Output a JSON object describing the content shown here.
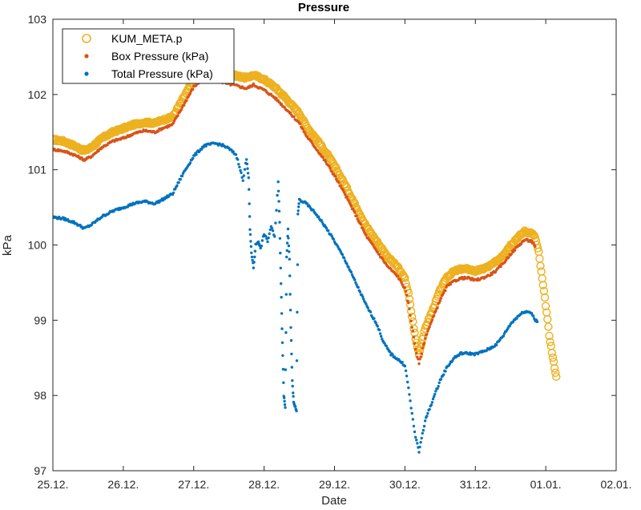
{
  "chart_data": {
    "type": "scatter",
    "title": "Pressure",
    "xlabel": "Date",
    "ylabel": "kPa",
    "x_tick_labels": [
      "25.12.",
      "26.12.",
      "27.12.",
      "28.12.",
      "29.12.",
      "30.12.",
      "31.12.",
      "01.01.",
      "02.01."
    ],
    "y_tick_labels": [
      "97",
      "98",
      "99",
      "100",
      "101",
      "102",
      "103"
    ],
    "x_unit": "days since 25.12.",
    "xlim": [
      0,
      8
    ],
    "ylim": [
      97,
      103
    ],
    "legend": {
      "position": "top-left",
      "boxed": true
    },
    "series": [
      {
        "name": "KUM_META.p",
        "marker": "open-circle",
        "color": "#EDB120",
        "points": [
          [
            0.0,
            101.4
          ],
          [
            0.15,
            101.38
          ],
          [
            0.3,
            101.32
          ],
          [
            0.45,
            101.25
          ],
          [
            0.55,
            101.3
          ],
          [
            0.7,
            101.42
          ],
          [
            0.85,
            101.5
          ],
          [
            1.0,
            101.55
          ],
          [
            1.15,
            101.6
          ],
          [
            1.3,
            101.63
          ],
          [
            1.45,
            101.62
          ],
          [
            1.55,
            101.66
          ],
          [
            1.7,
            101.7
          ],
          [
            1.85,
            101.95
          ],
          [
            2.0,
            102.2
          ],
          [
            2.15,
            102.35
          ],
          [
            2.3,
            102.32
          ],
          [
            2.45,
            102.28
          ],
          [
            2.6,
            102.25
          ],
          [
            2.75,
            102.22
          ],
          [
            2.85,
            102.26
          ],
          [
            3.0,
            102.2
          ],
          [
            3.15,
            102.1
          ],
          [
            3.3,
            101.96
          ],
          [
            3.4,
            101.85
          ],
          [
            3.5,
            101.75
          ],
          [
            3.6,
            101.58
          ],
          [
            3.75,
            101.4
          ],
          [
            3.9,
            101.2
          ],
          [
            4.0,
            101.05
          ],
          [
            4.15,
            100.8
          ],
          [
            4.3,
            100.52
          ],
          [
            4.45,
            100.25
          ],
          [
            4.6,
            100.05
          ],
          [
            4.75,
            99.85
          ],
          [
            4.9,
            99.7
          ],
          [
            5.0,
            99.55
          ],
          [
            5.05,
            99.35
          ],
          [
            5.1,
            99.05
          ],
          [
            5.15,
            98.75
          ],
          [
            5.2,
            98.55
          ],
          [
            5.25,
            98.75
          ],
          [
            5.3,
            98.92
          ],
          [
            5.4,
            99.15
          ],
          [
            5.5,
            99.4
          ],
          [
            5.6,
            99.58
          ],
          [
            5.7,
            99.65
          ],
          [
            5.8,
            99.68
          ],
          [
            5.9,
            99.68
          ],
          [
            6.0,
            99.65
          ],
          [
            6.1,
            99.68
          ],
          [
            6.2,
            99.72
          ],
          [
            6.3,
            99.78
          ],
          [
            6.4,
            99.88
          ],
          [
            6.5,
            100.0
          ],
          [
            6.6,
            100.1
          ],
          [
            6.7,
            100.18
          ],
          [
            6.8,
            100.16
          ],
          [
            6.85,
            100.1
          ],
          [
            6.9,
            99.9
          ],
          [
            6.95,
            99.55
          ],
          [
            7.0,
            99.2
          ],
          [
            7.05,
            98.8
          ],
          [
            7.1,
            98.5
          ],
          [
            7.15,
            98.25
          ]
        ]
      },
      {
        "name": "Box Pressure (kPa)",
        "marker": "dot",
        "color": "#D95319",
        "points": [
          [
            0.0,
            101.27
          ],
          [
            0.15,
            101.25
          ],
          [
            0.3,
            101.2
          ],
          [
            0.45,
            101.13
          ],
          [
            0.55,
            101.18
          ],
          [
            0.7,
            101.3
          ],
          [
            0.85,
            101.38
          ],
          [
            1.0,
            101.42
          ],
          [
            1.15,
            101.48
          ],
          [
            1.3,
            101.52
          ],
          [
            1.45,
            101.5
          ],
          [
            1.55,
            101.55
          ],
          [
            1.7,
            101.6
          ],
          [
            1.85,
            101.85
          ],
          [
            2.0,
            102.1
          ],
          [
            2.15,
            102.22
          ],
          [
            2.3,
            102.2
          ],
          [
            2.45,
            102.15
          ],
          [
            2.6,
            102.12
          ],
          [
            2.75,
            102.08
          ],
          [
            2.85,
            102.13
          ],
          [
            3.0,
            102.06
          ],
          [
            3.15,
            101.96
          ],
          [
            3.3,
            101.82
          ],
          [
            3.4,
            101.72
          ],
          [
            3.5,
            101.62
          ],
          [
            3.6,
            101.45
          ],
          [
            3.75,
            101.27
          ],
          [
            3.9,
            101.07
          ],
          [
            4.0,
            100.92
          ],
          [
            4.15,
            100.67
          ],
          [
            4.3,
            100.4
          ],
          [
            4.45,
            100.12
          ],
          [
            4.6,
            99.92
          ],
          [
            4.75,
            99.72
          ],
          [
            4.9,
            99.58
          ],
          [
            5.0,
            99.42
          ],
          [
            5.05,
            99.22
          ],
          [
            5.1,
            98.92
          ],
          [
            5.15,
            98.62
          ],
          [
            5.2,
            98.42
          ],
          [
            5.25,
            98.62
          ],
          [
            5.3,
            98.8
          ],
          [
            5.4,
            99.03
          ],
          [
            5.5,
            99.27
          ],
          [
            5.6,
            99.45
          ],
          [
            5.7,
            99.52
          ],
          [
            5.8,
            99.56
          ],
          [
            5.9,
            99.56
          ],
          [
            6.0,
            99.53
          ],
          [
            6.1,
            99.56
          ],
          [
            6.2,
            99.6
          ],
          [
            6.3,
            99.66
          ],
          [
            6.4,
            99.76
          ],
          [
            6.5,
            99.88
          ],
          [
            6.6,
            99.98
          ],
          [
            6.7,
            100.07
          ],
          [
            6.8,
            100.05
          ],
          [
            6.85,
            99.98
          ]
        ]
      },
      {
        "name": "Total Pressure (kPa)",
        "marker": "dot",
        "color": "#0072BD",
        "points": [
          [
            0.0,
            100.37
          ],
          [
            0.15,
            100.35
          ],
          [
            0.3,
            100.3
          ],
          [
            0.45,
            100.22
          ],
          [
            0.55,
            100.27
          ],
          [
            0.7,
            100.38
          ],
          [
            0.85,
            100.45
          ],
          [
            1.0,
            100.5
          ],
          [
            1.15,
            100.55
          ],
          [
            1.3,
            100.58
          ],
          [
            1.45,
            100.55
          ],
          [
            1.55,
            100.6
          ],
          [
            1.7,
            100.68
          ],
          [
            1.85,
            100.95
          ],
          [
            2.0,
            101.18
          ],
          [
            2.15,
            101.32
          ],
          [
            2.3,
            101.35
          ],
          [
            2.4,
            101.33
          ],
          [
            2.5,
            101.28
          ],
          [
            2.6,
            101.2
          ],
          [
            2.65,
            101.05
          ],
          [
            2.7,
            100.85
          ],
          [
            2.75,
            101.15
          ],
          [
            2.78,
            100.9
          ],
          [
            2.8,
            100.2
          ],
          [
            2.82,
            99.9
          ],
          [
            2.85,
            99.7
          ],
          [
            2.88,
            100.0
          ],
          [
            2.92,
            100.05
          ],
          [
            2.95,
            99.95
          ],
          [
            3.0,
            100.15
          ],
          [
            3.05,
            100.05
          ],
          [
            3.1,
            100.25
          ],
          [
            3.15,
            100.1
          ],
          [
            3.2,
            100.85
          ],
          [
            3.22,
            100.3
          ],
          [
            3.24,
            99.5
          ],
          [
            3.26,
            98.7
          ],
          [
            3.28,
            98.0
          ],
          [
            3.3,
            97.85
          ],
          [
            3.32,
            99.85
          ],
          [
            3.34,
            100.2
          ],
          [
            3.36,
            99.8
          ],
          [
            3.38,
            98.9
          ],
          [
            3.4,
            98.2
          ],
          [
            3.42,
            97.9
          ],
          [
            3.44,
            97.85
          ],
          [
            3.46,
            97.8
          ],
          [
            3.48,
            100.4
          ],
          [
            3.5,
            100.6
          ],
          [
            3.6,
            100.55
          ],
          [
            3.75,
            100.4
          ],
          [
            3.9,
            100.2
          ],
          [
            4.0,
            100.05
          ],
          [
            4.15,
            99.8
          ],
          [
            4.3,
            99.5
          ],
          [
            4.45,
            99.2
          ],
          [
            4.6,
            98.95
          ],
          [
            4.7,
            98.7
          ],
          [
            4.8,
            98.55
          ],
          [
            4.9,
            98.48
          ],
          [
            5.0,
            98.4
          ],
          [
            5.05,
            98.1
          ],
          [
            5.1,
            97.75
          ],
          [
            5.15,
            97.45
          ],
          [
            5.2,
            97.25
          ],
          [
            5.25,
            97.5
          ],
          [
            5.3,
            97.7
          ],
          [
            5.4,
            97.95
          ],
          [
            5.5,
            98.2
          ],
          [
            5.6,
            98.38
          ],
          [
            5.7,
            98.5
          ],
          [
            5.8,
            98.56
          ],
          [
            5.9,
            98.56
          ],
          [
            6.0,
            98.55
          ],
          [
            6.1,
            98.58
          ],
          [
            6.2,
            98.62
          ],
          [
            6.3,
            98.68
          ],
          [
            6.4,
            98.8
          ],
          [
            6.5,
            98.95
          ],
          [
            6.6,
            99.05
          ],
          [
            6.7,
            99.12
          ],
          [
            6.8,
            99.1
          ],
          [
            6.85,
            99.0
          ],
          [
            6.88,
            98.98
          ]
        ]
      }
    ]
  }
}
